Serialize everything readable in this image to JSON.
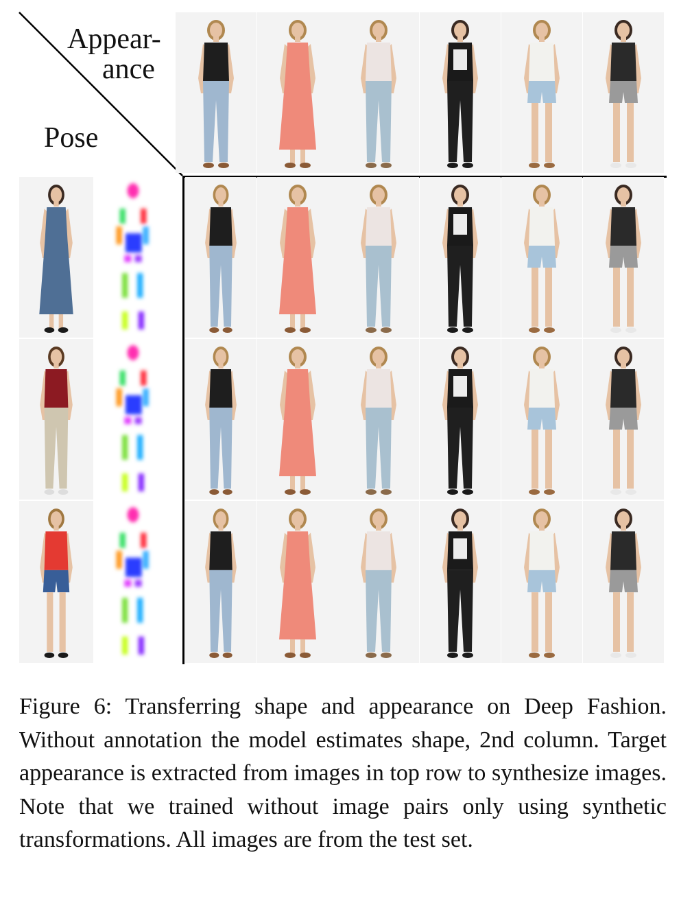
{
  "corner": {
    "appearance_label_1": "Appear-",
    "appearance_label_2": "ance",
    "pose_label": "Pose"
  },
  "caption": "Figure 6: Transferring shape and appearance on Deep Fashion. Without annotation the model estimates shape, 2nd column. Target appearance is extracted from images in top row to synthesize images. Note that we trained without image pairs only using synthetic transformations. All images are from the test set.",
  "colors": {
    "line": "#000000",
    "skin": "#e6c2a4",
    "hair_blonde": "#b08850",
    "hair_dark": "#3a2a22",
    "shoe_brown": "#8a5a36",
    "shoe_black": "#1a1a1a",
    "shoe_white": "#e8e8e8"
  },
  "appearances": [
    {
      "hair": "#b08850",
      "top": "#1e1e1e",
      "bottom": "#9fb7cf",
      "bottomStyle": "jeans",
      "shoe": "#8a5a36",
      "dress": false
    },
    {
      "hair": "#b08850",
      "top": "#ef8a7a",
      "bottom": "#ef8a7a",
      "bottomStyle": "dress",
      "shoe": "#8a5a36",
      "dress": true
    },
    {
      "hair": "#b08850",
      "top": "#ece4e2",
      "bottom": "#a9c0cf",
      "bottomStyle": "jeans",
      "shoe": "#8a6a4a",
      "dress": false
    },
    {
      "hair": "#3a2a22",
      "top": "#1a1a1a",
      "bottom": "#1f1f1f",
      "bottomStyle": "jeans",
      "shoe": "#1a1a1a",
      "dress": false,
      "print": true
    },
    {
      "hair": "#b08850",
      "top": "#f2f2ee",
      "bottom": "#a8c4da",
      "bottomStyle": "shorts",
      "shoe": "#9a6a40",
      "dress": false
    },
    {
      "hair": "#3a2a22",
      "top": "#2a2a2a",
      "bottom": "#9a9a9a",
      "bottomStyle": "shorts",
      "shoe": "#e8e8e8",
      "dress": false
    }
  ],
  "poses": [
    {
      "hair": "#3a2a22",
      "top": "#4f6f95",
      "bottom": "#4f6f95",
      "bottomStyle": "dress",
      "shoe": "#1a1a1a",
      "dress": true
    },
    {
      "hair": "#5a3a22",
      "top": "#8c1a22",
      "bottom": "#cfc6b0",
      "bottomStyle": "jeans",
      "shoe": "#dddddd",
      "dress": false
    },
    {
      "hair": "#a07840",
      "top": "#e43a32",
      "bottom": "#385e98",
      "bottomStyle": "shorts",
      "shoe": "#1a1a1a",
      "dress": false
    }
  ]
}
